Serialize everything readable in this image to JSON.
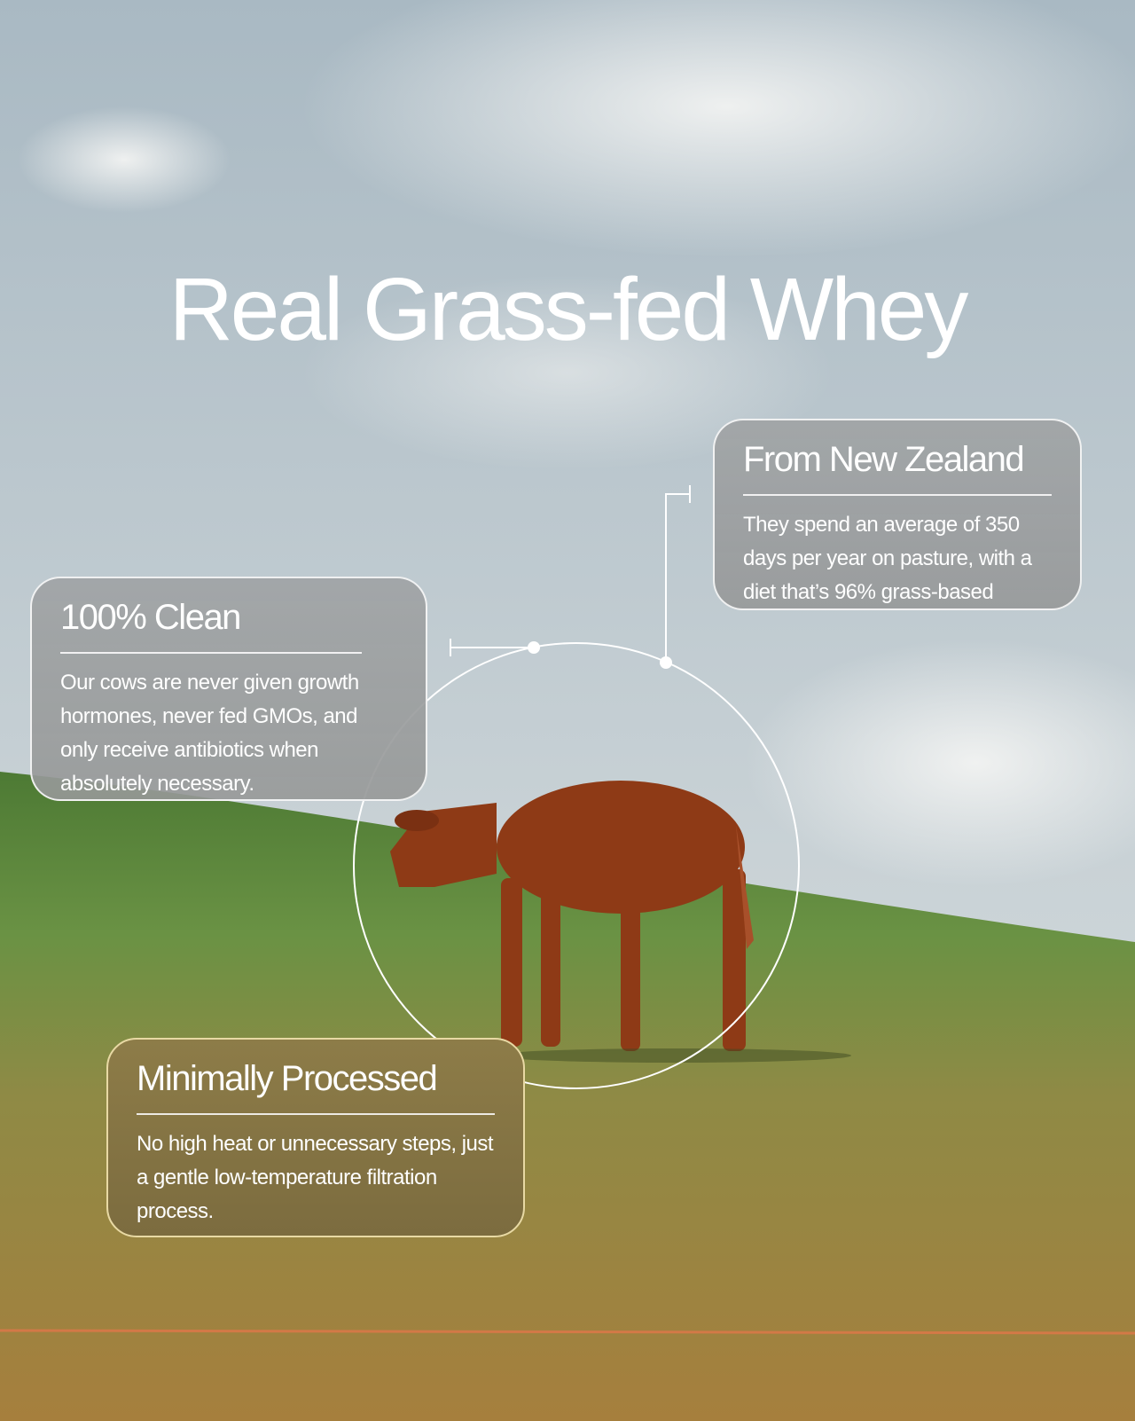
{
  "headline": "Real Grass-fed Whey",
  "cards": [
    {
      "title": "From New Zealand",
      "body": "They spend an average of 350 days per year on pasture, with a diet that’s 96% grass-based"
    },
    {
      "title": "100% Clean",
      "body": "Our cows are never given growth hormones, never fed GMOs, and only receive antibiotics when absolutely necessary."
    },
    {
      "title": "Minimally Processed",
      "body": "No high heat or unnecessary steps, just a gentle low-temperature filtration process."
    }
  ],
  "colors": {
    "sky": "#b9c6cc",
    "grass": "#5f8a3c",
    "soil": "#a7843f",
    "cow": "#8e3a16",
    "card_olive": "#857546"
  }
}
